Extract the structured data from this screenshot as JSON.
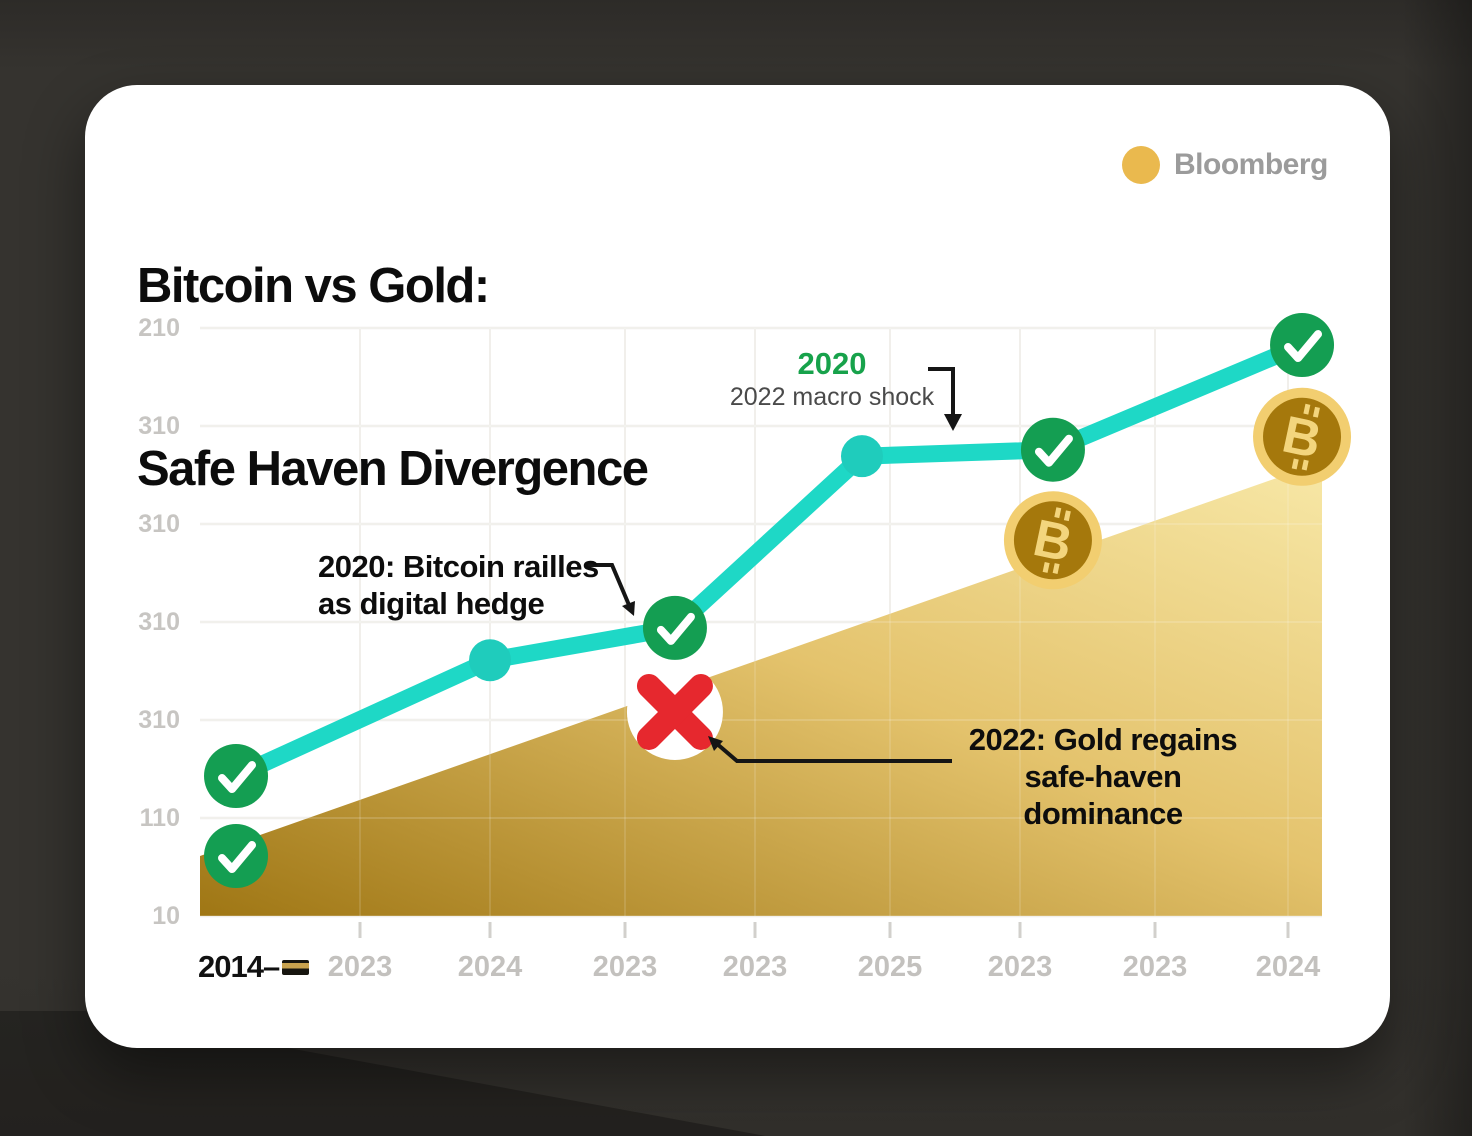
{
  "header": {
    "title_line1": "Bitcoin vs Gold:",
    "title_line2": "Safe Haven Divergence",
    "brand": {
      "name": "Bloomberg"
    }
  },
  "icons": {
    "brand_dot": "bloomberg-dot-icon",
    "axis_swatch": "gold-black-swatch-icon",
    "check": "check-icon",
    "cross": "x-icon",
    "coin": "bitcoin-coin-icon"
  },
  "colors": {
    "teal_line": "#1ed8c6",
    "teal_dot": "#1fccbc",
    "check_green": "#149e52",
    "x_red": "#e6282e",
    "gold_dark": "#9c720d",
    "gold_mid": "#e3c168",
    "gold_light": "#f7e7a4",
    "coin_outer": "#f2ce70",
    "coin_inner": "#a5780c",
    "coin_symbol": "#f3d57d",
    "grid": "#efede9",
    "tick": "#d2d0cc",
    "arrow": "#151515",
    "brand_gold": "#eab94e"
  },
  "chart_data": {
    "type": "line",
    "title": "Bitcoin vs Gold: Safe Haven Divergence",
    "grid": true,
    "legend": "none",
    "y_tick_labels": [
      "210",
      "310",
      "310",
      "310",
      "310",
      "110",
      "10"
    ],
    "x_tick_labels": [
      "2014",
      "2023",
      "2024",
      "2023",
      "2023",
      "2025",
      "2023",
      "2023",
      "2024"
    ],
    "x_first_display": "2014–",
    "series": [
      {
        "name": "Bitcoin",
        "type": "line",
        "color": "#1ed8c6",
        "points_frac": [
          {
            "fx": 0.0321,
            "fy": 0.238
          },
          {
            "fx": 0.2585,
            "fy": 0.435
          },
          {
            "fx": 0.4233,
            "fy": 0.49
          },
          {
            "fx": 0.59,
            "fy": 0.782
          },
          {
            "fx": 0.7602,
            "fy": 0.793
          },
          {
            "fx": 0.9822,
            "fy": 0.971
          }
        ],
        "point_markers": [
          "check",
          "dot",
          "check",
          "dot",
          "check",
          "check"
        ]
      },
      {
        "name": "Gold",
        "type": "area",
        "gradient": [
          "#9c720d",
          "#f7e7a4"
        ],
        "top_edge_frac": [
          {
            "fx": 0,
            "fy": 0.102
          },
          {
            "fx": 1,
            "fy": 0.772
          }
        ]
      }
    ],
    "extra_markers": {
      "extra_checks": [
        {
          "fx": 0.0321,
          "fy": 0.102
        }
      ],
      "x_cross": {
        "fx": 0.4233,
        "fy": 0.347
      },
      "coins": [
        {
          "fx": 0.7602,
          "fy": 0.639
        },
        {
          "fx": 0.9822,
          "fy": 0.815
        }
      ]
    },
    "annotations": {
      "shock": {
        "title": "2020",
        "text": "2022 macro shock"
      },
      "bitcoin": {
        "line1": "2020: Bitcoin railles",
        "line2": "as digital hedge"
      },
      "gold": {
        "line1": "2022: Gold regains",
        "line2": "safe-haven dominance"
      }
    }
  }
}
